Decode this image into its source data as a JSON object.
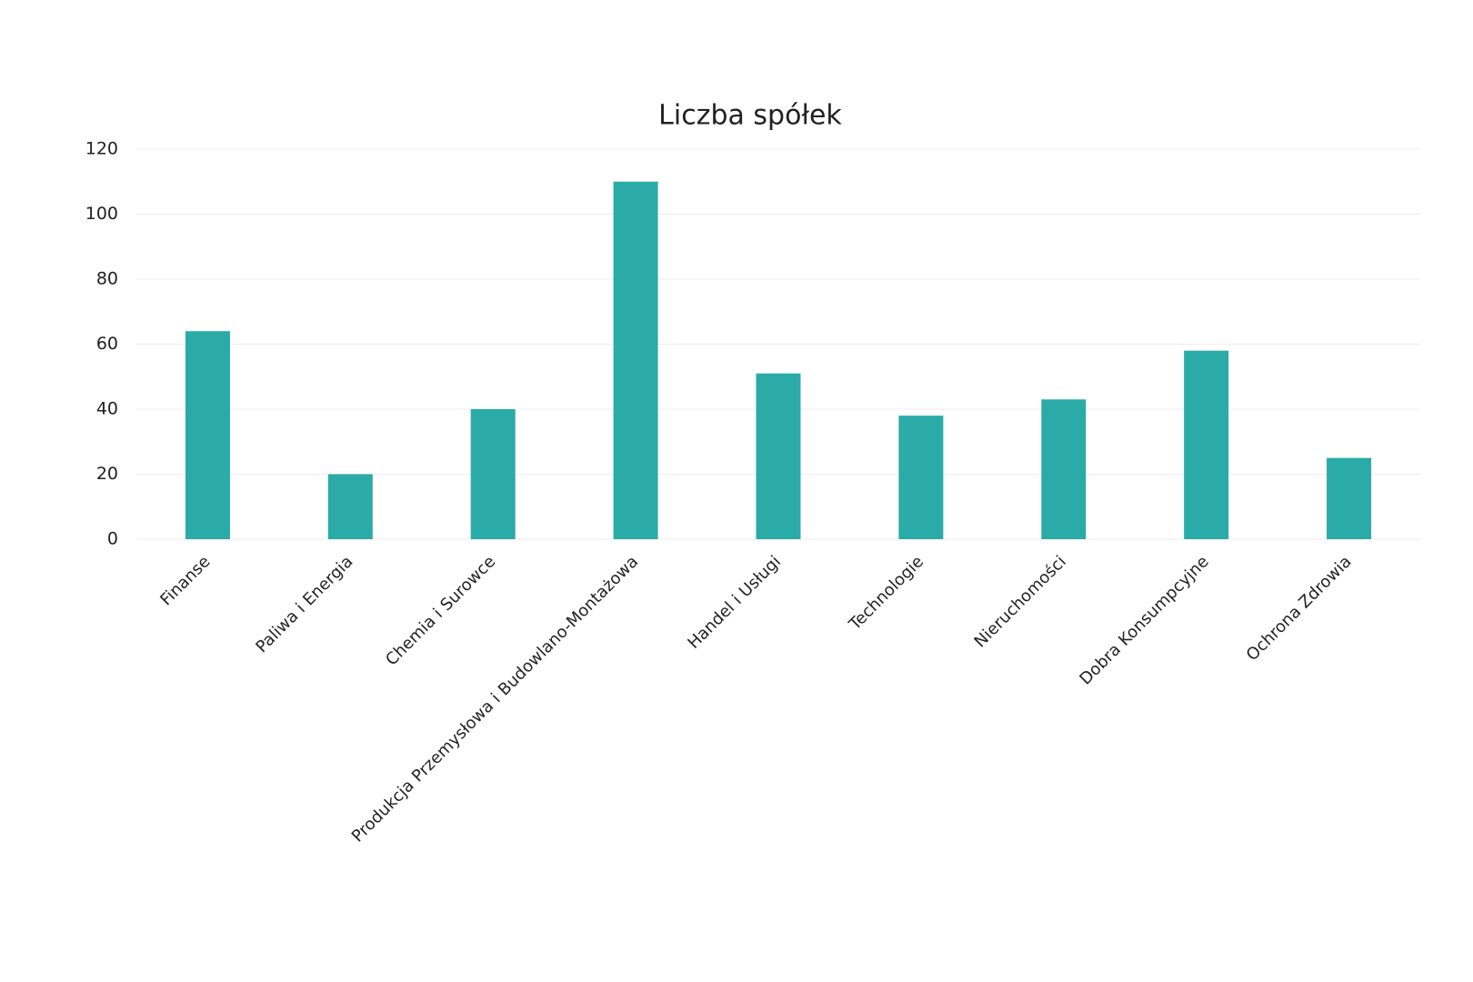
{
  "chart_data": {
    "type": "bar",
    "title": "Liczba spółek",
    "categories": [
      "Finanse",
      "Paliwa i Energia",
      "Chemia i Surowce",
      "Produkcja Przemysłowa i Budowlano-Montażowa",
      "Handel i Usługi",
      "Technologie",
      "Nieruchomości",
      "Dobra Konsumpcyjne",
      "Ochrona Zdrowia"
    ],
    "values": [
      64,
      20,
      40,
      110,
      51,
      38,
      43,
      58,
      25
    ],
    "color": "#2aaba8",
    "ylim": [
      0,
      120
    ],
    "yticks": [
      0,
      20,
      40,
      60,
      80,
      100,
      120
    ],
    "grid": true
  }
}
